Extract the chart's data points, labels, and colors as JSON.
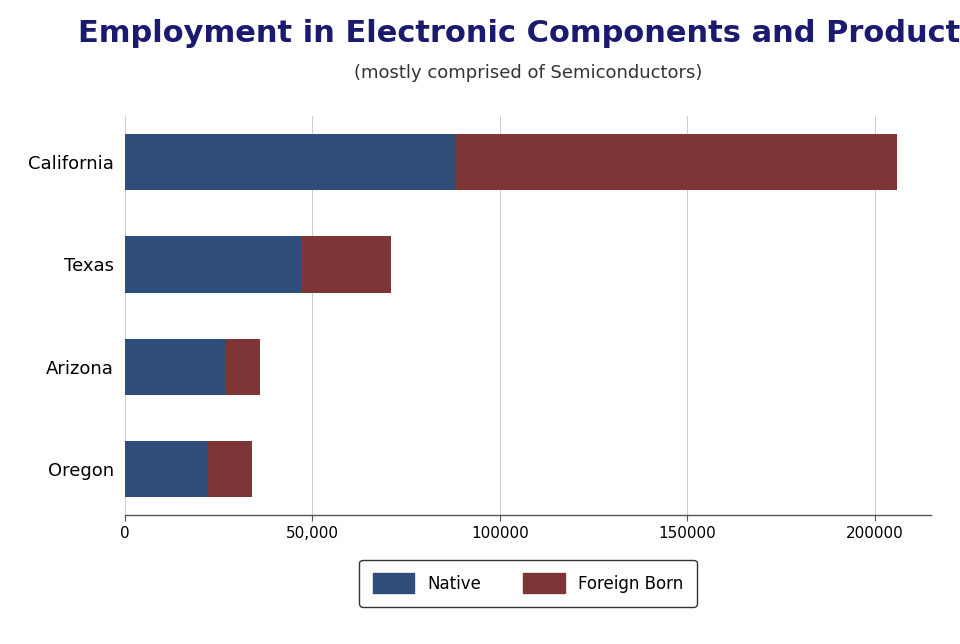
{
  "title": "Employment in Electronic Components and Products",
  "subtitle": "(mostly comprised of Semiconductors)",
  "categories": [
    "California",
    "Texas",
    "Arizona",
    "Oregon"
  ],
  "native": [
    88000,
    47000,
    27000,
    22000
  ],
  "foreign_born": [
    118000,
    24000,
    9000,
    12000
  ],
  "native_color": "#2e4d7b",
  "foreign_born_color": "#7e3535",
  "title_color": "#1a1a6e",
  "subtitle_color": "#333333",
  "background_color": "#ffffff",
  "xlim": [
    0,
    215000
  ],
  "xticks": [
    0,
    50000,
    100000,
    150000,
    200000
  ],
  "xticklabels": [
    "0",
    "50,000",
    "100000",
    "150000",
    "200000"
  ],
  "title_fontsize": 22,
  "subtitle_fontsize": 13,
  "label_fontsize": 13,
  "tick_fontsize": 11,
  "legend_fontsize": 12
}
